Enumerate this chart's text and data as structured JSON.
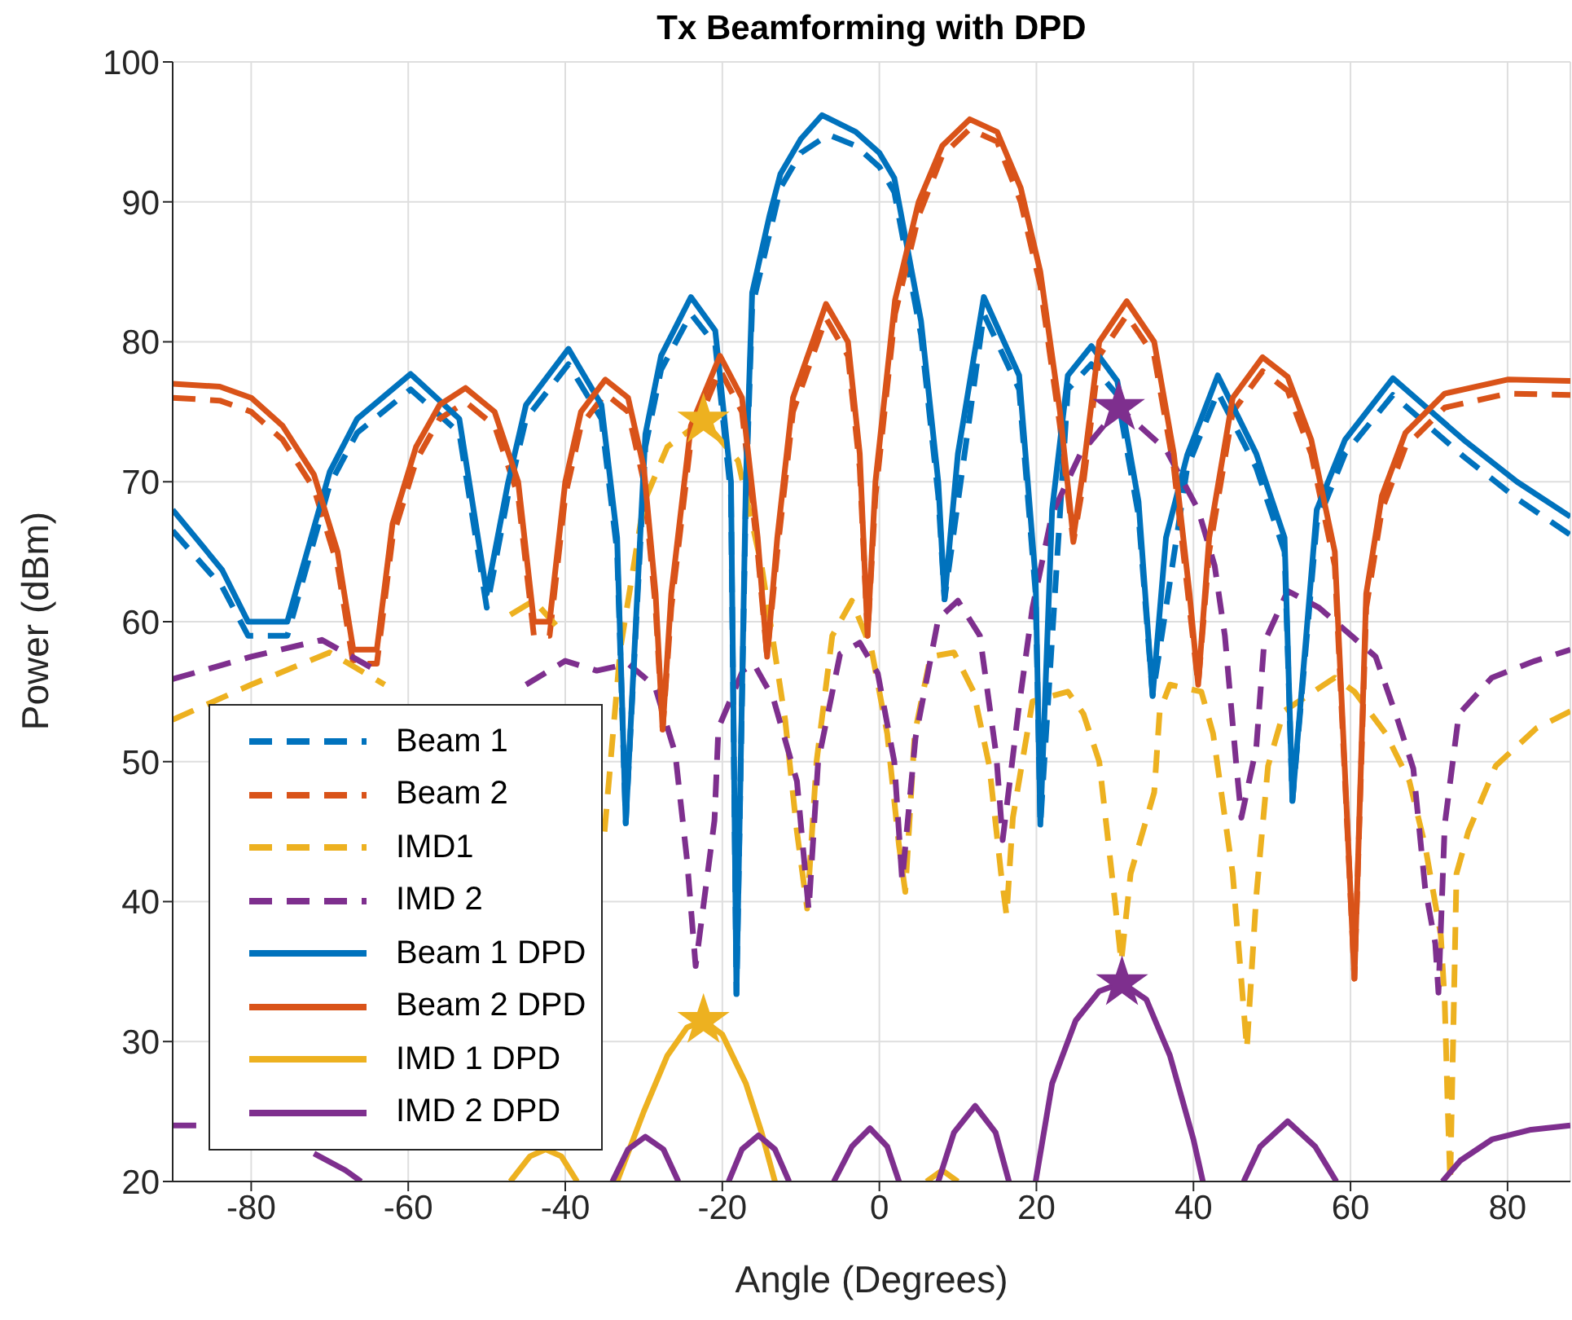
{
  "chart_data": {
    "type": "line",
    "title": "Tx Beamforming with DPD",
    "xlabel": "Angle (Degrees)",
    "ylabel": "Power (dBm)",
    "xlim": [
      -90,
      88
    ],
    "xticks": [
      -80,
      -60,
      -40,
      -20,
      0,
      20,
      40,
      60,
      80
    ],
    "ylim": [
      20,
      100
    ],
    "yticks": [
      20,
      30,
      40,
      50,
      60,
      70,
      80,
      90,
      100
    ],
    "grid": true,
    "legend": "bottom left",
    "series": [
      {
        "name": "Beam 1",
        "color": "#0072bd",
        "line_style": "dashed",
        "x": [
          -90,
          -83.7,
          -80.4,
          -75.4,
          -70,
          -66.5,
          -59.7,
          -53.5,
          -50,
          -47.3,
          -45,
          -39.6,
          -35.4,
          -33.4,
          -32.3,
          -29.8,
          -27.8,
          -24,
          -20.9,
          -18.9,
          -18.2,
          -17,
          -16.2,
          -12.6,
          -10,
          -6.5,
          -3,
          0,
          1.9,
          5.3,
          7.5,
          8.3,
          13.3,
          17.8,
          19.9,
          20.5,
          24,
          27,
          30.3,
          33,
          34.8,
          39.2,
          43.1,
          48,
          51.6,
          52.6,
          55.7,
          59.3,
          65.4,
          74.4,
          81.2,
          88
        ],
        "values": [
          66.5,
          62.5,
          59,
          59,
          69.8,
          73.5,
          76.6,
          73.5,
          61,
          69,
          74.5,
          78.4,
          74.5,
          65,
          45.6,
          72.5,
          78,
          82,
          79.8,
          69,
          33.4,
          69,
          82.5,
          91,
          93.5,
          94.8,
          94,
          92.5,
          90.7,
          80.5,
          69,
          61.6,
          82,
          76.6,
          62,
          45.5,
          76.6,
          78.4,
          76.2,
          67.6,
          54.7,
          71,
          76.4,
          71,
          65,
          47.2,
          67,
          72,
          76.2,
          71.8,
          68.8,
          66.2
        ]
      },
      {
        "name": "Beam 2",
        "color": "#d95319",
        "line_style": "dashed",
        "x": [
          -90,
          -84,
          -80,
          -76,
          -72,
          -69,
          -67,
          -64,
          -62,
          -59,
          -56,
          -52.7,
          -49,
          -46,
          -44,
          -42,
          -40,
          -38,
          -34.9,
          -32,
          -30,
          -28.5,
          -27.6,
          -26.5,
          -24,
          -20.3,
          -17.5,
          -15.5,
          -14.3,
          -13,
          -11,
          -6.8,
          -4,
          -2.5,
          -1.5,
          -0.5,
          2,
          5,
          8,
          11.5,
          15,
          18,
          20.5,
          23,
          24.7,
          26,
          28,
          31.5,
          35,
          37.5,
          39.5,
          40.6,
          42,
          45,
          48.8,
          52,
          55,
          58,
          60.5,
          62,
          64,
          67,
          72,
          80,
          88
        ],
        "values": [
          76,
          75.8,
          75,
          73,
          69.5,
          64,
          57,
          57,
          66,
          71.5,
          74.5,
          75.7,
          74,
          69,
          59,
          59,
          69,
          74,
          76.3,
          75,
          70,
          61,
          52.3,
          61,
          73,
          78,
          75,
          65,
          57.5,
          65,
          75,
          81.7,
          79,
          71,
          59,
          69,
          82,
          89,
          93.3,
          95.2,
          94.3,
          90,
          84,
          74,
          65.7,
          70,
          79,
          81.9,
          79,
          71,
          61,
          55.5,
          65,
          75,
          77.9,
          76.5,
          72,
          64,
          34.5,
          61,
          68,
          72.5,
          75.3,
          76.3,
          76.2
        ]
      },
      {
        "name": "IMD1",
        "color": "#edb120",
        "line_style": "dashed",
        "x": [
          -90,
          -80,
          -70,
          -63,
          -58,
          -55,
          -52,
          -47,
          -44,
          -40,
          -37,
          -35,
          -33,
          -30,
          -27,
          -22.4,
          -18,
          -15,
          -12,
          -10.5,
          -9.2,
          -8,
          -6,
          -3.5,
          -1,
          1,
          2.5,
          3.3,
          4.5,
          6.5,
          9.5,
          12,
          14,
          15.5,
          16.2,
          17,
          19.5,
          24,
          26,
          28,
          30,
          30.8,
          32,
          35,
          35.7,
          37,
          41,
          42.5,
          45,
          46.8,
          48,
          49.5,
          51.5,
          58,
          60.5,
          64.5,
          67.5,
          69.5,
          71.5,
          72,
          72.4,
          72.7,
          73.5,
          75,
          78.5,
          83.7,
          88
        ],
        "values": [
          53,
          55.5,
          57.8,
          55.5,
          null,
          null,
          null,
          60.5,
          61.5,
          59,
          null,
          45,
          58,
          68.5,
          72.5,
          74.4,
          71.5,
          64,
          53,
          45,
          39.5,
          50,
          59,
          61.5,
          58,
          52,
          44,
          40.7,
          52,
          57.5,
          57.8,
          55,
          49.7,
          42,
          39,
          46,
          54.3,
          55,
          53.4,
          50,
          40,
          35.7,
          42,
          47.8,
          53.6,
          55.5,
          55,
          52,
          42,
          29.5,
          40.4,
          49.7,
          53.6,
          56,
          55,
          52,
          48.6,
          44,
          37.6,
          32.8,
          25,
          20,
          42,
          45,
          49.7,
          52.4,
          53.6
        ]
      },
      {
        "name": "IMD 2",
        "color": "#7e2f8e",
        "line_style": "dashed",
        "x": [
          -90,
          -80,
          -71,
          -64,
          -58,
          -54,
          -50,
          -45,
          -40,
          -36,
          -32,
          -28.6,
          -26,
          -24.5,
          -23.4,
          -21,
          -20.5,
          -17.4,
          -16,
          -13.5,
          -10.5,
          -9,
          -7.8,
          -5,
          -2.5,
          -0.2,
          1.9,
          2.9,
          4.6,
          7.5,
          10,
          12.8,
          14.9,
          15.7,
          17.7,
          19.5,
          22,
          25.6,
          30.5,
          36.5,
          40.6,
          42.7,
          44,
          45.5,
          46.1,
          48,
          49,
          52,
          56,
          63.2,
          66,
          68,
          69.5,
          70.8,
          71.2,
          72,
          73.8,
          78,
          83.5,
          88
        ],
        "values": [
          55.9,
          57.5,
          58.7,
          56.5,
          null,
          null,
          null,
          55.5,
          57.2,
          56.5,
          57,
          55.4,
          50.6,
          43,
          35.4,
          45.8,
          52.4,
          56.5,
          57,
          54.5,
          48.6,
          39.4,
          50,
          57.7,
          58.5,
          56.3,
          50,
          41.5,
          51.7,
          60.2,
          61.5,
          59,
          50.4,
          44.4,
          53.6,
          61,
          67.7,
          72,
          75.3,
          72.3,
          68,
          64,
          59,
          49.5,
          46,
          51,
          58.5,
          62.2,
          61,
          57.5,
          53,
          49.5,
          41,
          37,
          33.5,
          45.5,
          53.4,
          56,
          57.2,
          58
        ]
      },
      {
        "name": "Beam 1 DPD",
        "color": "#0072bd",
        "line_style": "solid",
        "x": [
          -90,
          -83.7,
          -80.4,
          -75.4,
          -70,
          -66.5,
          -59.7,
          -53.5,
          -50,
          -47.3,
          -45,
          -39.6,
          -35.4,
          -33.4,
          -32.3,
          -29.8,
          -27.8,
          -24,
          -20.9,
          -18.9,
          -18.2,
          -17,
          -16.2,
          -14,
          -12.6,
          -10,
          -7.3,
          -3,
          0,
          1.9,
          5.3,
          7.5,
          8.3,
          10,
          13.3,
          17.8,
          19.9,
          20.5,
          22,
          24,
          27,
          30.3,
          33,
          34.8,
          36.5,
          39.2,
          43.1,
          48,
          51.6,
          52.6,
          55.7,
          59.3,
          65.4,
          74.4,
          81.2,
          88
        ],
        "values": [
          68,
          63.7,
          60,
          60,
          70.7,
          74.5,
          77.7,
          74.5,
          62,
          69.9,
          75.5,
          79.5,
          75.5,
          66,
          45.6,
          73.4,
          79,
          83.2,
          80.8,
          70,
          33.4,
          70,
          83.5,
          89,
          92,
          94.5,
          96.2,
          95,
          93.5,
          91.7,
          81.5,
          70,
          61.6,
          72,
          83.2,
          77.6,
          63,
          45.5,
          68,
          77.6,
          79.7,
          77.2,
          68.6,
          54.7,
          66,
          71.9,
          77.6,
          72,
          66,
          47.2,
          68,
          73,
          77.4,
          73,
          70,
          67.5
        ]
      },
      {
        "name": "Beam 2 DPD",
        "color": "#d95319",
        "line_style": "solid",
        "x": [
          -90,
          -84,
          -80,
          -76,
          -72,
          -69,
          -67,
          -64,
          -62,
          -59,
          -56,
          -52.7,
          -49,
          -46,
          -44,
          -42,
          -40,
          -38,
          -34.9,
          -32,
          -30,
          -28.5,
          -27.6,
          -26.5,
          -24,
          -20.3,
          -17.5,
          -15.5,
          -14.3,
          -13,
          -11,
          -6.8,
          -4,
          -2.5,
          -1.5,
          -0.5,
          2,
          5,
          8,
          11.5,
          15,
          18,
          20.5,
          23,
          24.7,
          26,
          28,
          31.5,
          35,
          37.5,
          39.5,
          40.6,
          42,
          45,
          48.8,
          52,
          55,
          58,
          60.5,
          62,
          64,
          67,
          72,
          80,
          88
        ],
        "values": [
          77,
          76.8,
          76,
          74,
          70.5,
          65,
          58,
          58,
          67,
          72.5,
          75.5,
          76.7,
          75,
          70,
          60,
          60,
          70,
          75,
          77.3,
          76,
          71,
          62,
          52.3,
          62,
          74,
          79,
          76,
          66,
          57.5,
          66,
          76,
          82.7,
          80,
          72,
          59,
          70,
          83,
          90,
          94,
          95.9,
          95,
          91,
          85,
          75,
          66,
          71,
          80,
          82.9,
          80,
          72,
          62,
          55.5,
          66,
          76,
          78.9,
          77.5,
          73,
          65,
          34.5,
          62,
          69,
          73.5,
          76.3,
          77.3,
          77.2
        ]
      },
      {
        "name": "IMD 1 DPD",
        "color": "#edb120",
        "line_style": "solid",
        "x": [
          -47,
          -44.5,
          -42.5,
          -40.5,
          -38.5,
          -36,
          -33.4,
          -30,
          -27,
          -24.5,
          -22.4,
          -20,
          -17,
          -15,
          -13.3,
          -10,
          6,
          8,
          10
        ],
        "values": [
          20,
          21.8,
          22.3,
          21.8,
          20,
          null,
          20,
          25,
          29,
          31,
          31.5,
          30.5,
          27,
          23.5,
          20,
          null,
          20,
          20.8,
          20
        ]
      },
      {
        "name": "IMD 2 DPD",
        "color": "#7e2f8e",
        "line_style": "solid",
        "x": [
          -90,
          -87,
          -86,
          -72,
          -68,
          -66,
          -60,
          -34,
          -32,
          -29.8,
          -27.5,
          -25.6,
          -22,
          -19.2,
          -17.5,
          -15.4,
          -13.3,
          -11.5,
          -8,
          -5.8,
          -3.5,
          -1.2,
          1,
          2.5,
          5,
          7.5,
          9.5,
          12.2,
          14.8,
          16.5,
          18,
          19.9,
          22,
          25,
          28,
          30.9,
          34,
          37,
          40,
          41.2,
          44,
          46.4,
          48.5,
          52,
          55.5,
          58.2,
          65,
          71.7,
          74,
          78,
          83,
          88
        ],
        "values": [
          24,
          24,
          null,
          22,
          20.8,
          20,
          null,
          20,
          22.3,
          23.2,
          22.3,
          20,
          null,
          20,
          22.3,
          23.3,
          22.3,
          20,
          null,
          20,
          22.5,
          23.8,
          22.5,
          20,
          null,
          20,
          23.5,
          25.4,
          23.5,
          20,
          null,
          20,
          27,
          31.5,
          33.6,
          34.2,
          33,
          29,
          23,
          20,
          null,
          20,
          22.5,
          24.3,
          22.5,
          20,
          null,
          20,
          21.5,
          23,
          23.7,
          24
        ]
      },
      {
        "type": "scatter",
        "color": "#edb120",
        "marker": "star",
        "x": [
          -22.4,
          -22.4
        ],
        "values": [
          74.4,
          31.5
        ]
      },
      {
        "type": "scatter",
        "color": "#7e2f8e",
        "marker": "star",
        "x": [
          30.5,
          30.9
        ],
        "values": [
          75.3,
          34.2
        ]
      }
    ]
  }
}
